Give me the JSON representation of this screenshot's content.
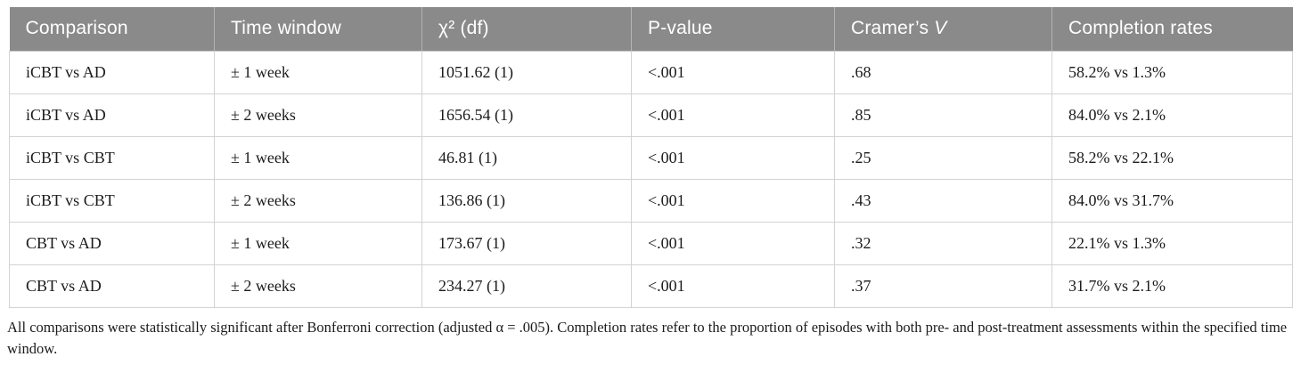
{
  "table": {
    "columns": [
      {
        "label": "Comparison"
      },
      {
        "label": "Time window"
      },
      {
        "label": "χ² (df)"
      },
      {
        "label": "P-value"
      },
      {
        "label": "Cramer’s ",
        "label_italic": "V"
      },
      {
        "label": "Completion rates"
      }
    ],
    "rows": [
      [
        "iCBT vs AD",
        "± 1 week",
        "1051.62 (1)",
        "<.001",
        ".68",
        "58.2% vs 1.3%"
      ],
      [
        "iCBT vs AD",
        "± 2 weeks",
        "1656.54 (1)",
        "<.001",
        ".85",
        "84.0% vs 2.1%"
      ],
      [
        "iCBT vs CBT",
        "± 1 week",
        "46.81 (1)",
        "<.001",
        ".25",
        "58.2% vs 22.1%"
      ],
      [
        "iCBT vs CBT",
        "± 2 weeks",
        "136.86 (1)",
        "<.001",
        ".43",
        "84.0% vs 31.7%"
      ],
      [
        "CBT vs AD",
        "± 1 week",
        "173.67 (1)",
        "<.001",
        ".32",
        "22.1% vs 1.3%"
      ],
      [
        "CBT vs AD",
        "± 2 weeks",
        "234.27 (1)",
        "<.001",
        ".37",
        "31.7% vs 2.1%"
      ]
    ]
  },
  "footnote": "All comparisons were statistically significant after Bonferroni correction (adjusted α = .005). Completion rates refer to the proportion of episodes with both pre- and post-treatment assessments within the specified time window.",
  "colors": {
    "header_bg": "#8a8a8a",
    "header_text": "#ffffff",
    "border": "#d3d3d3",
    "body_text": "#1b1b1b"
  }
}
